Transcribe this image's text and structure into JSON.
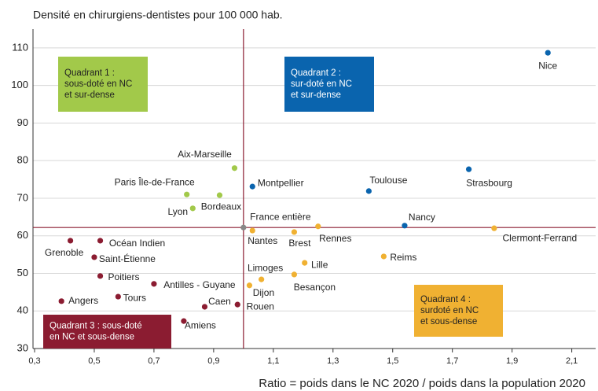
{
  "chart_data": {
    "type": "scatter",
    "title": "Densité en chirurgiens-dentistes pour 100 000 hab.",
    "x_label": "Ratio = poids dans le NC 2020 / poids dans la population 2020",
    "xlim": [
      0.3,
      2.18
    ],
    "ylim": [
      30,
      115
    ],
    "xticks": [
      {
        "value": 0.3,
        "label": "0,3"
      },
      {
        "value": 0.5,
        "label": "0,5"
      },
      {
        "value": 0.7,
        "label": "0,7"
      },
      {
        "value": 0.9,
        "label": "0,9"
      },
      {
        "value": 1.1,
        "label": "1,1"
      },
      {
        "value": 1.3,
        "label": "1,3"
      },
      {
        "value": 1.5,
        "label": "1,5"
      },
      {
        "value": 1.7,
        "label": "1,7"
      },
      {
        "value": 1.9,
        "label": "1,9"
      },
      {
        "value": 2.1,
        "label": "2,1"
      }
    ],
    "yticks": [
      30,
      40,
      50,
      60,
      70,
      80,
      90,
      100,
      110
    ],
    "grid": true,
    "series": [
      {
        "color": "#0a64ae",
        "labels": [
          "Nice",
          "Strasbourg",
          "Toulouse",
          "Nancy",
          "Montpellier"
        ],
        "x": [
          2.02,
          1.755,
          1.42,
          1.54,
          1.03
        ],
        "y": [
          108.7,
          77.7,
          71.9,
          62.7,
          73.1
        ]
      },
      {
        "color": "#f0b132",
        "labels": [
          "Clermont-Ferrand",
          "Rennes",
          "Brest",
          "Nantes",
          "Reims",
          "Lille",
          "Besançon",
          "Limoges",
          "Dijon"
        ],
        "x": [
          1.84,
          1.25,
          1.17,
          1.03,
          1.47,
          1.205,
          1.17,
          1.06,
          1.02
        ],
        "y": [
          62.0,
          62.5,
          61.0,
          61.4,
          54.5,
          52.8,
          49.7,
          48.4,
          46.8
        ]
      },
      {
        "color": "#a2c94a",
        "labels": [
          "Aix-Marseille",
          "Paris Île-de-France",
          "Bordeaux",
          "Lyon"
        ],
        "x": [
          0.97,
          0.81,
          0.92,
          0.83
        ],
        "y": [
          78.0,
          71.0,
          70.8,
          67.3
        ]
      },
      {
        "color": "#8b1c31",
        "labels": [
          "Grenoble",
          "Océan Indien",
          "Saint-Étienne",
          "Poitiers",
          "Antilles - Guyane",
          "Tours",
          "Angers",
          "Caen",
          "Rouen",
          "Amiens"
        ],
        "x": [
          0.42,
          0.52,
          0.5,
          0.52,
          0.7,
          0.58,
          0.39,
          0.87,
          0.98,
          0.8
        ],
        "y": [
          58.7,
          58.7,
          54.3,
          49.3,
          47.2,
          43.8,
          42.6,
          41.1,
          41.7,
          37.3
        ]
      },
      {
        "color": "#888888",
        "labels": [
          "France entière"
        ],
        "x": [
          1.0
        ],
        "y": [
          62.2
        ]
      }
    ],
    "annotations": [
      {
        "lines": [
          "Quadrant 1 :",
          "sous-doté en NC",
          "et sur-dense"
        ],
        "color": "#a2c94a"
      },
      {
        "lines": [
          "Quadrant 2 :",
          "sur-doté en NC",
          "et sur-dense"
        ],
        "color": "#0a64ae"
      },
      {
        "lines": [
          "Quadrant 3 : sous-doté",
          "en NC et sous-dense"
        ],
        "color": "#8b1c31"
      },
      {
        "lines": [
          "Quadrant 4 :",
          "surdoté en NC",
          "et sous-dense"
        ],
        "color": "#f0b132"
      }
    ]
  }
}
